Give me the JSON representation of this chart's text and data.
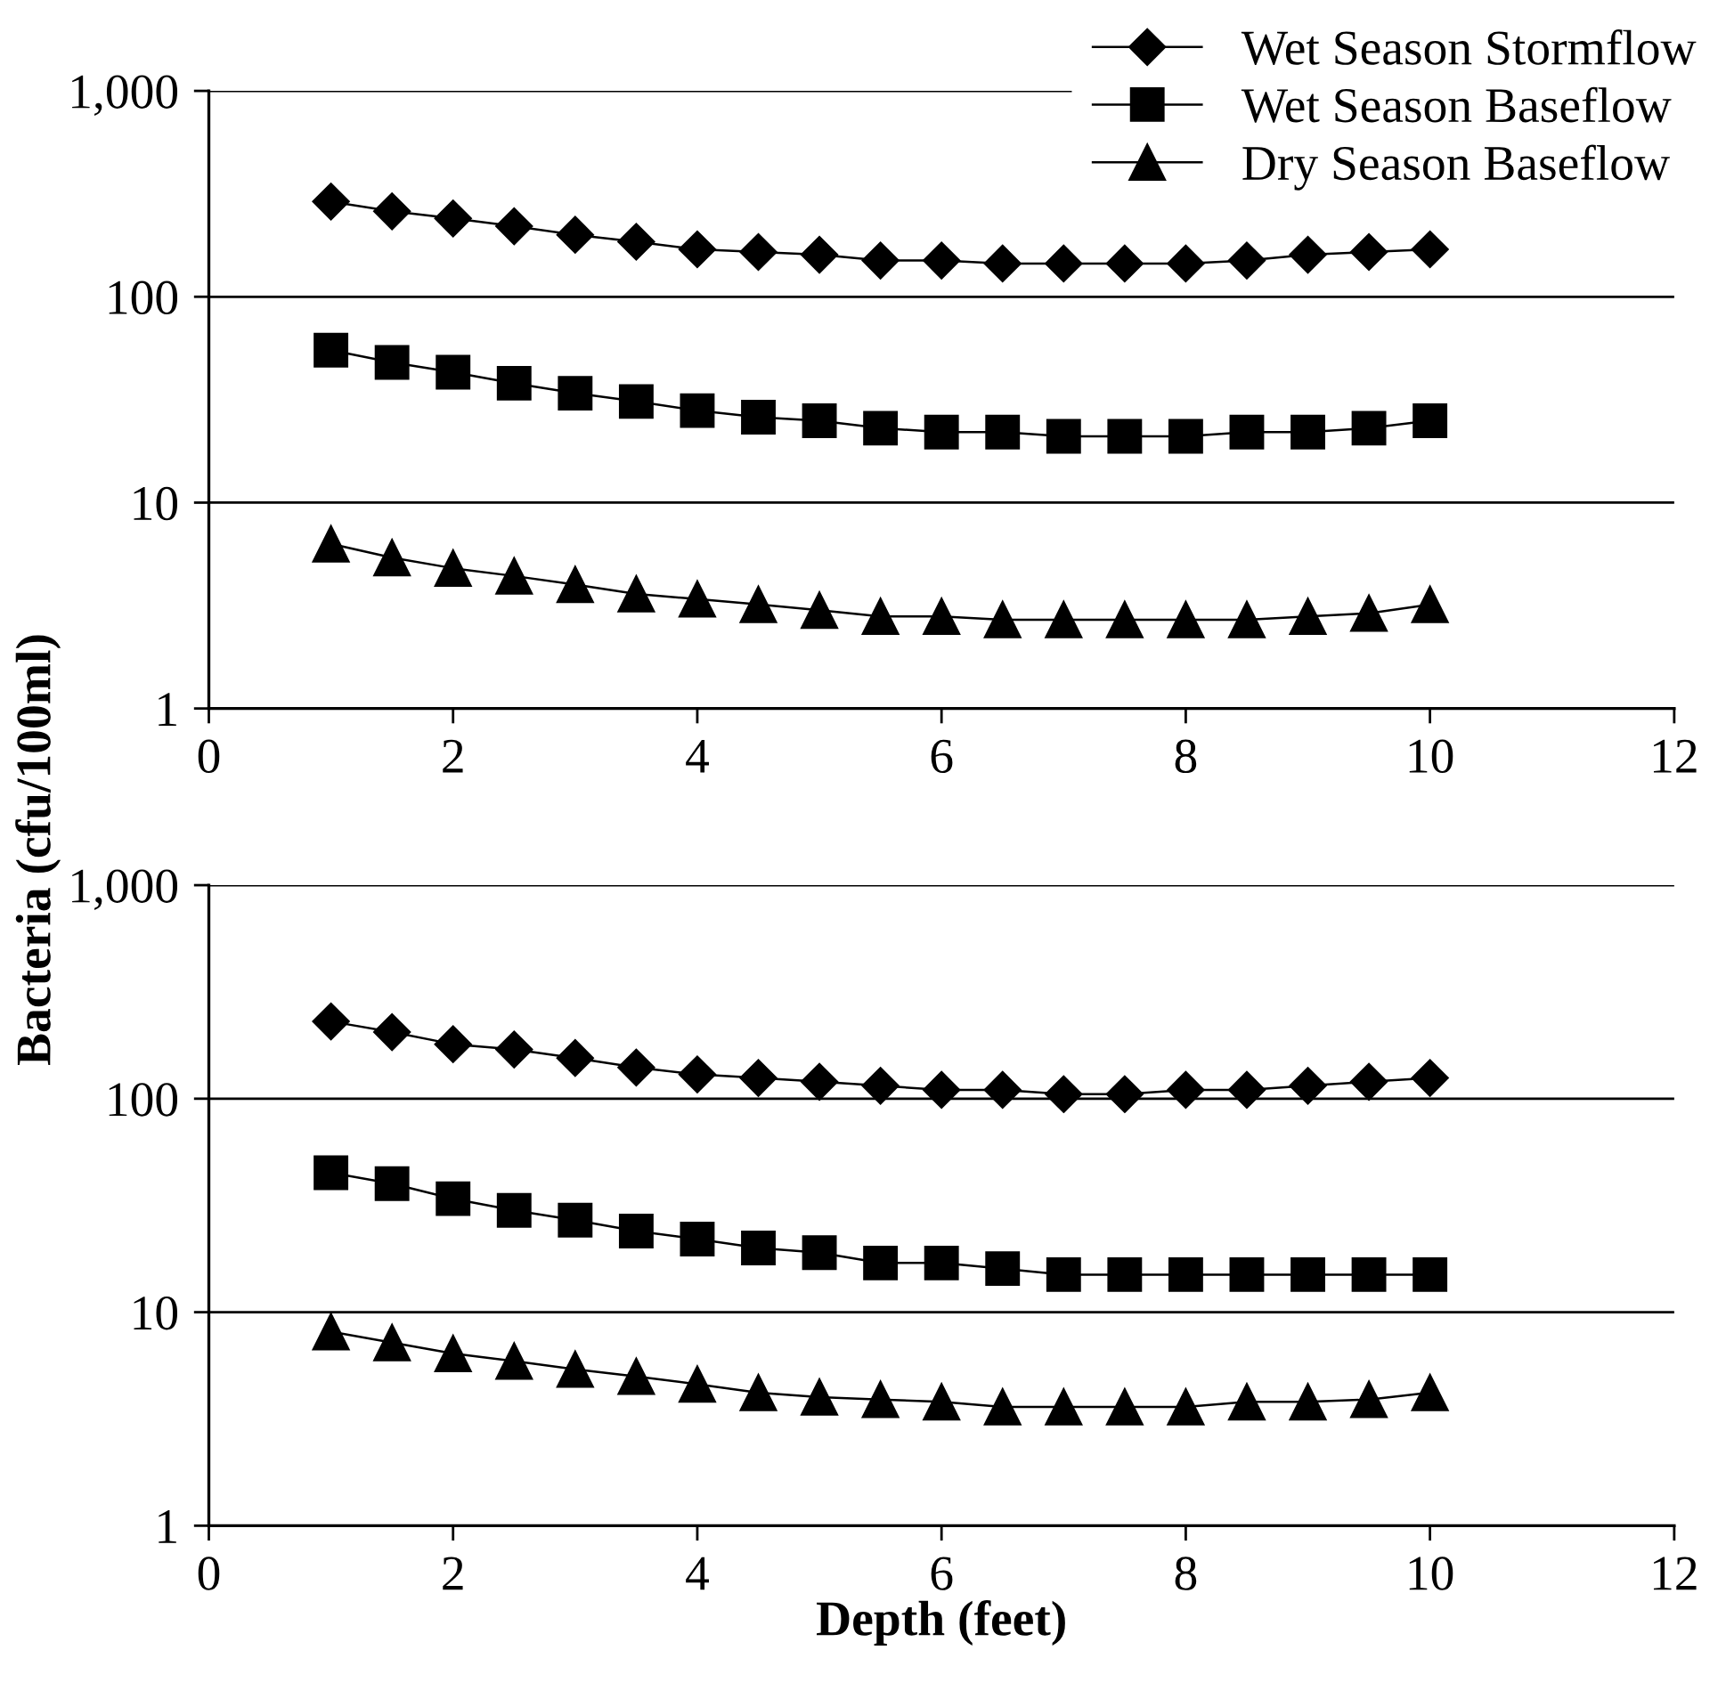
{
  "chart_data": [
    {
      "type": "line",
      "ylabel": "Bacteria (cfu/100ml)",
      "x": [
        1,
        1.5,
        2,
        2.5,
        3,
        3.5,
        4,
        4.5,
        5,
        5.5,
        6,
        6.5,
        7,
        7.5,
        8,
        8.5,
        9,
        9.5,
        10
      ],
      "series": [
        {
          "name": "Wet Season Stormflow",
          "color": "#000000",
          "marker": "diamond",
          "values": [
            290,
            260,
            240,
            220,
            200,
            185,
            170,
            165,
            160,
            150,
            150,
            145,
            145,
            145,
            145,
            150,
            160,
            165,
            170
          ]
        },
        {
          "name": "Wet Season Baseflow",
          "color": "#000000",
          "marker": "square",
          "values": [
            55,
            48,
            43,
            38,
            34,
            31,
            28,
            26,
            25,
            23,
            22,
            22,
            21,
            21,
            21,
            22,
            22,
            23,
            25
          ]
        },
        {
          "name": "Dry Season Baseflow",
          "color": "#000000",
          "marker": "triangle",
          "values": [
            6.3,
            5.4,
            4.8,
            4.4,
            4.0,
            3.6,
            3.4,
            3.2,
            3.0,
            2.8,
            2.8,
            2.7,
            2.7,
            2.7,
            2.7,
            2.7,
            2.8,
            2.9,
            3.2
          ]
        }
      ],
      "log": true,
      "ylim": [
        1,
        1000
      ],
      "yticks": [
        1,
        10,
        100,
        {
          "value": 1000,
          "label": "1,000"
        }
      ],
      "xlim": [
        0,
        12
      ],
      "xticks": [
        0,
        2,
        4,
        6,
        8,
        10,
        12
      ],
      "grid": "y",
      "legend": "top right",
      "line_style": "solid"
    },
    {
      "type": "line",
      "xlabel": "Depth (feet)",
      "x": [
        1,
        1.5,
        2,
        2.5,
        3,
        3.5,
        4,
        4.5,
        5,
        5.5,
        6,
        6.5,
        7,
        7.5,
        8,
        8.5,
        9,
        9.5,
        10
      ],
      "series": [
        {
          "color": "#000000",
          "marker": "diamond",
          "values": [
            230,
            205,
            180,
            170,
            155,
            140,
            130,
            125,
            120,
            115,
            110,
            110,
            105,
            105,
            110,
            110,
            115,
            120,
            125
          ]
        },
        {
          "color": "#000000",
          "marker": "square",
          "values": [
            45,
            40,
            34,
            30,
            27,
            24,
            22,
            20,
            19,
            17,
            17,
            16,
            15,
            15,
            15,
            15,
            15,
            15,
            15
          ]
        },
        {
          "color": "#000000",
          "marker": "triangle",
          "values": [
            8.1,
            7.2,
            6.4,
            5.9,
            5.4,
            5.0,
            4.6,
            4.2,
            4.0,
            3.9,
            3.8,
            3.6,
            3.6,
            3.6,
            3.6,
            3.8,
            3.8,
            3.9,
            4.2
          ]
        }
      ],
      "log": true,
      "ylim": [
        1,
        1000
      ],
      "yticks": [
        1,
        10,
        100,
        {
          "value": 1000,
          "label": "1,000"
        }
      ],
      "xlim": [
        0,
        12
      ],
      "xticks": [
        0,
        2,
        4,
        6,
        8,
        10,
        12
      ],
      "grid": "y",
      "line_style": "solid"
    }
  ]
}
